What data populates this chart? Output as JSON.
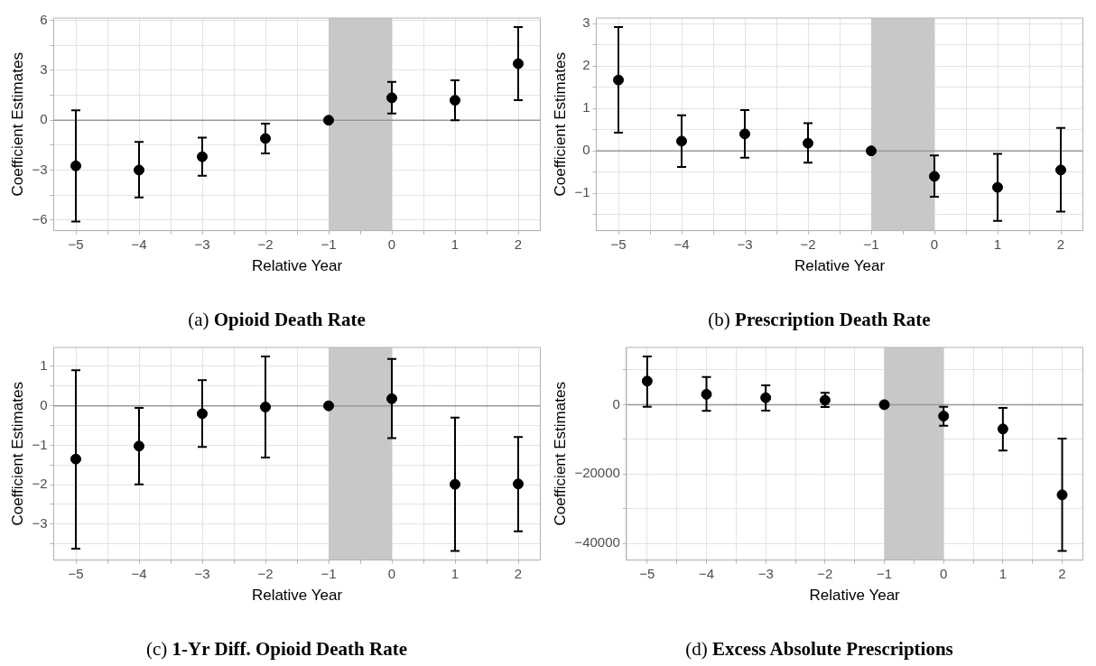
{
  "chart_data": [
    {
      "type": "scatter",
      "title": "(a) Opioid Death Rate",
      "xlabel": "Relative Year",
      "ylabel": "Coefficient Estimates",
      "marker": "circle",
      "grid": true,
      "xlim": [
        -5.35,
        2.35
      ],
      "xticks": [
        {
          "value": -5,
          "label": "−5"
        },
        {
          "value": -4.5,
          "label": null
        },
        {
          "value": -4,
          "label": "−4"
        },
        {
          "value": -3.5,
          "label": null
        },
        {
          "value": -3,
          "label": "−3"
        },
        {
          "value": -2.5,
          "label": null
        },
        {
          "value": -2,
          "label": "−2"
        },
        {
          "value": -1.5,
          "label": null
        },
        {
          "value": -1,
          "label": "−1"
        },
        {
          "value": -0.5,
          "label": null
        },
        0,
        {
          "value": 0.5,
          "label": null
        },
        1,
        {
          "value": 1.5,
          "label": null
        },
        2
      ],
      "ylim": [
        -6.65,
        6.15
      ],
      "yticks": [
        {
          "value": -6,
          "label": "−6"
        },
        {
          "value": -4.5,
          "label": null
        },
        {
          "value": -3,
          "label": "−3"
        },
        {
          "value": -1.5,
          "label": null
        },
        0,
        {
          "value": 1.5,
          "label": null
        },
        3,
        {
          "value": 4.5,
          "label": null
        },
        6
      ],
      "series": [
        {
          "color": "#000000",
          "x": [
            -5,
            -4,
            -3,
            -2,
            -1,
            0,
            1,
            2
          ],
          "values": [
            -2.75,
            -3.0,
            -2.2,
            -1.1,
            0,
            1.35,
            1.2,
            3.4
          ],
          "errors": [
            [
              -6.1,
              0.6
            ],
            [
              -4.65,
              -1.3
            ],
            [
              -3.35,
              -1.05
            ],
            [
              -2.0,
              -0.2
            ],
            null,
            [
              0.4,
              2.3
            ],
            [
              0.0,
              2.4
            ],
            [
              1.2,
              5.6
            ]
          ]
        }
      ],
      "ref_lines": [
        {
          "axis": "y",
          "value": 0,
          "color": "#999999"
        }
      ],
      "bands": [
        {
          "axis": "x",
          "from": -1,
          "to": 0,
          "color": "#c8c8c8"
        }
      ]
    },
    {
      "type": "scatter",
      "title": "(b) Prescription Death Rate",
      "xlabel": "Relative Year",
      "ylabel": "Coefficient Estimates",
      "marker": "circle",
      "grid": true,
      "xlim": [
        -5.35,
        2.35
      ],
      "xticks": [
        {
          "value": -5,
          "label": "−5"
        },
        {
          "value": -4.5,
          "label": null
        },
        {
          "value": -4,
          "label": "−4"
        },
        {
          "value": -3.5,
          "label": null
        },
        {
          "value": -3,
          "label": "−3"
        },
        {
          "value": -2.5,
          "label": null
        },
        {
          "value": -2,
          "label": "−2"
        },
        {
          "value": -1.5,
          "label": null
        },
        {
          "value": -1,
          "label": "−1"
        },
        {
          "value": -0.5,
          "label": null
        },
        0,
        {
          "value": 0.5,
          "label": null
        },
        1,
        {
          "value": 1.5,
          "label": null
        },
        2
      ],
      "ylim": [
        -1.88,
        3.13
      ],
      "yticks": [
        {
          "value": -1.5,
          "label": null
        },
        {
          "value": -1,
          "label": "−1"
        },
        {
          "value": -0.5,
          "label": null
        },
        0,
        {
          "value": 0.5,
          "label": null
        },
        1,
        {
          "value": 1.5,
          "label": null
        },
        2,
        {
          "value": 2.5,
          "label": null
        },
        3
      ],
      "series": [
        {
          "color": "#000000",
          "x": [
            -5,
            -4,
            -3,
            -2,
            -1,
            0,
            1,
            2
          ],
          "values": [
            1.67,
            0.23,
            0.4,
            0.18,
            0,
            -0.6,
            -0.86,
            -0.45
          ],
          "errors": [
            [
              0.43,
              2.92
            ],
            [
              -0.38,
              0.84
            ],
            [
              -0.16,
              0.96
            ],
            [
              -0.28,
              0.65
            ],
            null,
            [
              -1.08,
              -0.11
            ],
            [
              -1.65,
              -0.07
            ],
            [
              -1.43,
              0.54
            ]
          ]
        }
      ],
      "ref_lines": [
        {
          "axis": "y",
          "value": 0,
          "color": "#999999"
        }
      ],
      "bands": [
        {
          "axis": "x",
          "from": -1,
          "to": 0,
          "color": "#c8c8c8"
        }
      ]
    },
    {
      "type": "scatter",
      "title": "(c) 1-Yr Diff. Opioid Death Rate",
      "xlabel": "Relative Year",
      "ylabel": "Coefficient Estimates",
      "marker": "circle",
      "grid": true,
      "xlim": [
        -5.35,
        2.35
      ],
      "xticks": [
        {
          "value": -5,
          "label": "−5"
        },
        {
          "value": -4.5,
          "label": null
        },
        {
          "value": -4,
          "label": "−4"
        },
        {
          "value": -3.5,
          "label": null
        },
        {
          "value": -3,
          "label": "−3"
        },
        {
          "value": -2.5,
          "label": null
        },
        {
          "value": -2,
          "label": "−2"
        },
        {
          "value": -1.5,
          "label": null
        },
        {
          "value": -1,
          "label": "−1"
        },
        {
          "value": -0.5,
          "label": null
        },
        0,
        {
          "value": 0.5,
          "label": null
        },
        1,
        {
          "value": 1.5,
          "label": null
        },
        2
      ],
      "ylim": [
        -3.91,
        1.48
      ],
      "yticks": [
        {
          "value": -3.5,
          "label": null
        },
        {
          "value": -3,
          "label": "−3"
        },
        {
          "value": -2.5,
          "label": null
        },
        {
          "value": -2,
          "label": "−2"
        },
        {
          "value": -1.5,
          "label": null
        },
        {
          "value": -1,
          "label": "−1"
        },
        {
          "value": -0.5,
          "label": null
        },
        0,
        {
          "value": 0.5,
          "label": null
        },
        1
      ],
      "series": [
        {
          "color": "#000000",
          "x": [
            -5,
            -4,
            -3,
            -2,
            -1,
            0,
            1,
            2
          ],
          "values": [
            -1.35,
            -1.02,
            -0.2,
            -0.03,
            0,
            0.18,
            -1.99,
            -1.98
          ],
          "errors": [
            [
              -3.62,
              0.9
            ],
            [
              -1.99,
              -0.05
            ],
            [
              -1.04,
              0.65
            ],
            [
              -1.31,
              1.25
            ],
            null,
            [
              -0.82,
              1.19
            ],
            [
              -3.68,
              -0.3
            ],
            [
              -3.18,
              -0.79
            ]
          ]
        }
      ],
      "ref_lines": [
        {
          "axis": "y",
          "value": 0,
          "color": "#999999"
        }
      ],
      "bands": [
        {
          "axis": "x",
          "from": -1,
          "to": 0,
          "color": "#c8c8c8"
        }
      ]
    },
    {
      "type": "scatter",
      "title": "(d) Excess Absolute Prescriptions",
      "xlabel": "Relative Year",
      "ylabel": "Coefficient Estimates",
      "marker": "circle",
      "grid": true,
      "xlim": [
        -5.35,
        2.35
      ],
      "xticks": [
        {
          "value": -5,
          "label": "−5"
        },
        {
          "value": -4.5,
          "label": null
        },
        {
          "value": -4,
          "label": "−4"
        },
        {
          "value": -3.5,
          "label": null
        },
        {
          "value": -3,
          "label": "−3"
        },
        {
          "value": -2.5,
          "label": null
        },
        {
          "value": -2,
          "label": "−2"
        },
        {
          "value": -1.5,
          "label": null
        },
        {
          "value": -1,
          "label": "−1"
        },
        {
          "value": -0.5,
          "label": null
        },
        0,
        {
          "value": 0.5,
          "label": null
        },
        1,
        {
          "value": 1.5,
          "label": null
        },
        2
      ],
      "ylim": [
        -44800,
        16500
      ],
      "yticks": [
        {
          "value": -40000,
          "label": "−40000"
        },
        {
          "value": -30000,
          "label": null
        },
        {
          "value": -20000,
          "label": "−20000"
        },
        {
          "value": -10000,
          "label": null
        },
        0,
        {
          "value": 10000,
          "label": null
        }
      ],
      "series": [
        {
          "color": "#000000",
          "x": [
            -5,
            -4,
            -3,
            -2,
            -1,
            0,
            1,
            2
          ],
          "values": [
            6800,
            3000,
            2000,
            1300,
            0,
            -3300,
            -7000,
            -26000
          ],
          "errors": [
            [
              -600,
              13900
            ],
            [
              -1800,
              8000
            ],
            [
              -1700,
              5600
            ],
            [
              -700,
              3400
            ],
            null,
            [
              -6100,
              -600
            ],
            [
              -13200,
              -900
            ],
            [
              -42200,
              -9800
            ]
          ]
        }
      ],
      "ref_lines": [
        {
          "axis": "y",
          "value": 0,
          "color": "#999999"
        }
      ],
      "bands": [
        {
          "axis": "x",
          "from": -1,
          "to": 0,
          "color": "#c8c8c8"
        }
      ]
    }
  ]
}
